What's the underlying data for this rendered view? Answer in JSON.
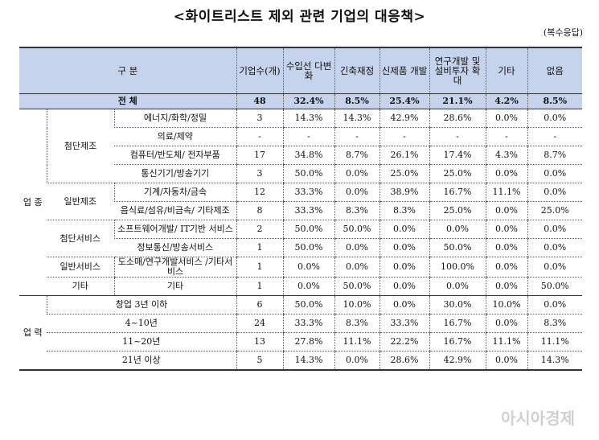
{
  "title": "<화이트리스트 제외 관련 기업의 대응책>",
  "note": "(복수응답)",
  "headers": [
    "구 분",
    "기업수(개)",
    "수입선 다변화",
    "긴축재정",
    "신제품 개발",
    "연구개발 및 설비투자 확대",
    "기타",
    "없음"
  ],
  "total": {
    "label": "전 체",
    "values": [
      "48",
      "32.4%",
      "8.5%",
      "25.4%",
      "21.1%",
      "4.2%",
      "8.5%"
    ]
  },
  "groups": {
    "industry": "업 종",
    "career": "업 력"
  },
  "industry_rows": [
    {
      "sub": "첨단제조",
      "label": "에너지/화학/정밀",
      "values": [
        "3",
        "14.3%",
        "14.3%",
        "42.9%",
        "28.6%",
        "0.0%",
        "0.0%"
      ]
    },
    {
      "label": "의료/제약",
      "values": [
        "-",
        "-",
        "-",
        "-",
        "-",
        "-",
        "-"
      ]
    },
    {
      "label": "컴퓨터/반도체/ 전자부품",
      "values": [
        "17",
        "34.8%",
        "8.7%",
        "26.1%",
        "17.4%",
        "4.3%",
        "8.7%"
      ]
    },
    {
      "label": "통신기기/방송기기",
      "values": [
        "3",
        "50.0%",
        "0.0%",
        "25.0%",
        "25.0%",
        "0.0%",
        "0.0%"
      ]
    },
    {
      "sub": "일반제조",
      "label": "기계/자동차/금속",
      "values": [
        "12",
        "33.3%",
        "0.0%",
        "38.9%",
        "16.7%",
        "11.1%",
        "0.0%"
      ]
    },
    {
      "label": "음식료/섬유/비금속/ 기타제조",
      "values": [
        "8",
        "33.3%",
        "8.3%",
        "8.3%",
        "25.0%",
        "0.0%",
        "25.0%"
      ]
    },
    {
      "sub": "첨단서비스",
      "label": "소프트웨어개발/ IT기반 서비스",
      "values": [
        "2",
        "50.0%",
        "50.0%",
        "0.0%",
        "0.0%",
        "0.0%",
        "0.0%"
      ]
    },
    {
      "label": "정보통신/방송서비스",
      "values": [
        "1",
        "50.0%",
        "0.0%",
        "0.0%",
        "50.0%",
        "0.0%",
        "0.0%"
      ]
    },
    {
      "sub": "일반서비스",
      "label": "도소매/연구개발서비스 /기타서비스",
      "values": [
        "1",
        "0.0%",
        "0.0%",
        "0.0%",
        "100.0%",
        "0.0%",
        "0.0%"
      ]
    },
    {
      "sub": "기타",
      "label": "기타",
      "values": [
        "1",
        "0.0%",
        "50.0%",
        "0.0%",
        "0.0%",
        "0.0%",
        "50.0%"
      ]
    }
  ],
  "career_rows": [
    {
      "label": "창업 3년 이하",
      "values": [
        "6",
        "50.0%",
        "10.0%",
        "0.0%",
        "30.0%",
        "10.0%",
        "0.0%"
      ]
    },
    {
      "label": "4~10년",
      "values": [
        "24",
        "33.3%",
        "8.3%",
        "33.3%",
        "16.7%",
        "0.0%",
        "8.3%"
      ]
    },
    {
      "label": "11~20년",
      "values": [
        "13",
        "27.8%",
        "11.1%",
        "22.2%",
        "16.7%",
        "11.1%",
        "11.1%"
      ]
    },
    {
      "label": "21년 이상",
      "values": [
        "5",
        "14.3%",
        "0.0%",
        "28.6%",
        "42.9%",
        "0.0%",
        "14.3%"
      ]
    }
  ],
  "watermark": "아시아경제"
}
